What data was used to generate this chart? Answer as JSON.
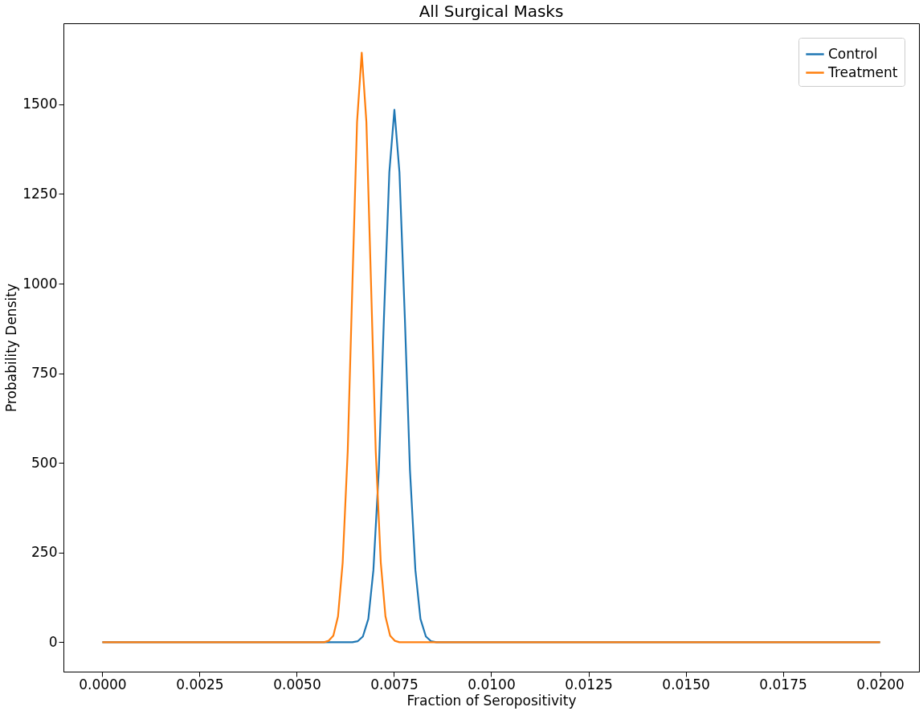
{
  "chart_data": {
    "type": "line",
    "title": "All Surgical Masks",
    "xlabel": "Fraction of Seropositivity",
    "ylabel": "Probability Density",
    "series": [
      {
        "name": "Control",
        "color": "#1f77b4",
        "x": [
          0.0,
          0.00643,
          0.00657,
          0.0067,
          0.00684,
          0.00697,
          0.00711,
          0.00724,
          0.00738,
          0.00751,
          0.00764,
          0.00778,
          0.00791,
          0.00805,
          0.00818,
          0.00832,
          0.00845,
          0.00859,
          0.02
        ],
        "values": [
          0,
          0,
          3,
          16,
          65,
          201,
          481,
          901,
          1311,
          1485,
          1311,
          901,
          481,
          201,
          65,
          16,
          3,
          0,
          0
        ]
      },
      {
        "name": "Treatment",
        "color": "#ff7f0e",
        "x": [
          0.0,
          0.0057,
          0.00582,
          0.00594,
          0.00606,
          0.00618,
          0.00631,
          0.00643,
          0.00655,
          0.00667,
          0.00679,
          0.00691,
          0.00703,
          0.00716,
          0.00728,
          0.0074,
          0.00752,
          0.00764,
          0.02
        ],
        "values": [
          0,
          0,
          4,
          18,
          72,
          222,
          533,
          997,
          1451,
          1644,
          1451,
          997,
          533,
          222,
          72,
          18,
          4,
          0,
          0
        ]
      }
    ],
    "xlim": [
      -0.001,
      0.021
    ],
    "xticks": [
      {
        "value": 0,
        "label": "0.0000"
      },
      {
        "value": 0.0025,
        "label": "0.0025"
      },
      {
        "value": 0.005,
        "label": "0.0050"
      },
      {
        "value": 0.0075,
        "label": "0.0075"
      },
      {
        "value": 0.01,
        "label": "0.0100"
      },
      {
        "value": 0.0125,
        "label": "0.0125"
      },
      {
        "value": 0.015,
        "label": "0.0150"
      },
      {
        "value": 0.0175,
        "label": "0.0175"
      },
      {
        "value": 0.02,
        "label": "0.0200"
      }
    ],
    "ylim": [
      -82,
      1726
    ],
    "yticks": [
      0,
      250,
      500,
      750,
      1000,
      1250,
      1500
    ],
    "legend": "top right",
    "grid": false
  }
}
